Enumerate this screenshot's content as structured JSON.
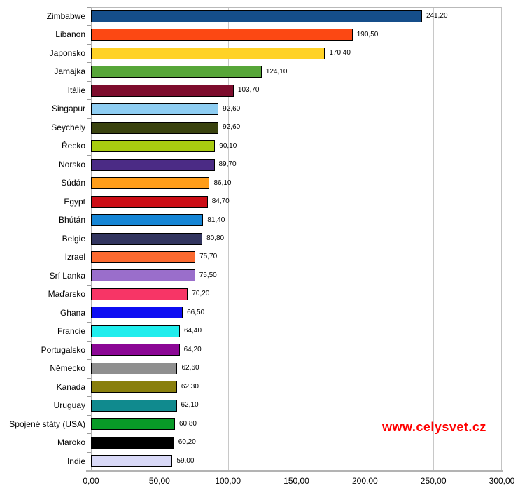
{
  "chart_data": {
    "type": "bar",
    "orientation": "horizontal",
    "title": "",
    "xlabel": "",
    "ylabel": "",
    "xlim": [
      0,
      300
    ],
    "x_tick_labels": [
      "0,00",
      "50,00",
      "100,00",
      "150,00",
      "200,00",
      "250,00",
      "300,00"
    ],
    "grid": "vertical",
    "legend": "none",
    "categories": [
      "Zimbabwe",
      "Libanon",
      "Japonsko",
      "Jamajka",
      "Itálie",
      "Singapur",
      "Seychely",
      "Řecko",
      "Norsko",
      "Súdán",
      "Egypt",
      "Bhútán",
      "Belgie",
      "Izrael",
      "Srí Lanka",
      "Maďarsko",
      "Ghana",
      "Francie",
      "Portugalsko",
      "Německo",
      "Kanada",
      "Uruguay",
      "Spojené státy (USA)",
      "Maroko",
      "Indie"
    ],
    "values": [
      241.2,
      190.5,
      170.4,
      124.1,
      103.7,
      92.6,
      92.6,
      90.1,
      89.7,
      86.1,
      84.7,
      81.4,
      80.8,
      75.7,
      75.5,
      70.2,
      66.5,
      64.4,
      64.2,
      62.6,
      62.3,
      62.1,
      60.8,
      60.2,
      59.0
    ],
    "value_labels": [
      "241,20",
      "190,50",
      "170,40",
      "124,10",
      "103,70",
      "92,60",
      "92,60",
      "90,10",
      "89,70",
      "86,10",
      "84,70",
      "81,40",
      "80,80",
      "75,70",
      "75,50",
      "70,20",
      "66,50",
      "64,40",
      "64,20",
      "62,60",
      "62,30",
      "62,10",
      "60,80",
      "60,20",
      "59,00"
    ],
    "bar_colors": [
      "#154e8a",
      "#fc4813",
      "#ffd226",
      "#57a639",
      "#7d0c2d",
      "#8ecdf2",
      "#3a430f",
      "#a8cb10",
      "#4b2b85",
      "#ff9d1a",
      "#cb0c15",
      "#1585d5",
      "#32355f",
      "#fb6a30",
      "#9a6ecb",
      "#f73566",
      "#0d0df2",
      "#20eded",
      "#8b0795",
      "#8f8f8f",
      "#897f0d",
      "#108a8e",
      "#089a27",
      "#000000",
      "#d9d9f7"
    ]
  },
  "watermark": {
    "text": "www.celysvet.cz",
    "color": "#ff0000"
  }
}
